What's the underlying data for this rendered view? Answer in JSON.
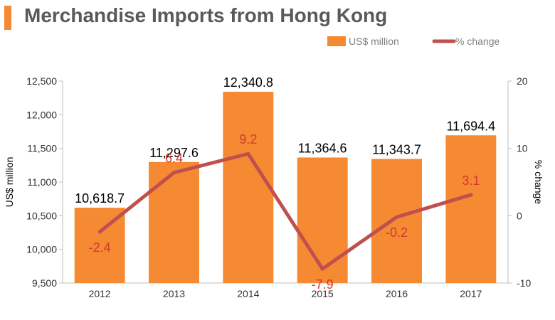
{
  "header": {
    "title": "Merchandise Imports from Hong Kong"
  },
  "colors": {
    "accent": "#F58A33",
    "bar": "#F58A33",
    "line": "#C0504D",
    "line_label": "#D03A2B",
    "title": "#595959",
    "axis_text": "#333333",
    "grid": "#BFBFBF"
  },
  "chart_data": {
    "type": "bar",
    "title": "Merchandise Imports from Hong Kong",
    "categories": [
      "2012",
      "2013",
      "2014",
      "2015",
      "2016",
      "2017"
    ],
    "series": [
      {
        "name": "US$ million",
        "type": "bar",
        "axis": "left",
        "values": [
          10618.7,
          11297.6,
          12340.8,
          11364.6,
          11343.7,
          11694.4
        ],
        "labels": [
          "10,618.7",
          "11,297.6",
          "12,340.8",
          "11,364.6",
          "11,343.7",
          "11,694.4"
        ]
      },
      {
        "name": "% change",
        "type": "line",
        "axis": "right",
        "values": [
          -2.4,
          6.4,
          9.2,
          -7.9,
          -0.2,
          3.1
        ],
        "labels": [
          "-2.4",
          "6.4",
          "9.2",
          "-7.9",
          "-0.2",
          "3.1"
        ]
      }
    ],
    "left_axis": {
      "label": "US$ million",
      "range": [
        9500,
        12500
      ],
      "ticks": [
        9500,
        10000,
        10500,
        11000,
        11500,
        12000,
        12500
      ],
      "tick_labels": [
        "9,500",
        "10,000",
        "10,500",
        "11,000",
        "11,500",
        "12,000",
        "12,500"
      ]
    },
    "right_axis": {
      "label": "% change",
      "range": [
        -10,
        20
      ],
      "ticks": [
        -10,
        0,
        10,
        20
      ],
      "tick_labels": [
        "-10",
        "0",
        "10",
        "20"
      ]
    },
    "legend": {
      "position": "top-right",
      "entries": [
        "US$ million",
        "% change"
      ]
    },
    "grid": false
  }
}
